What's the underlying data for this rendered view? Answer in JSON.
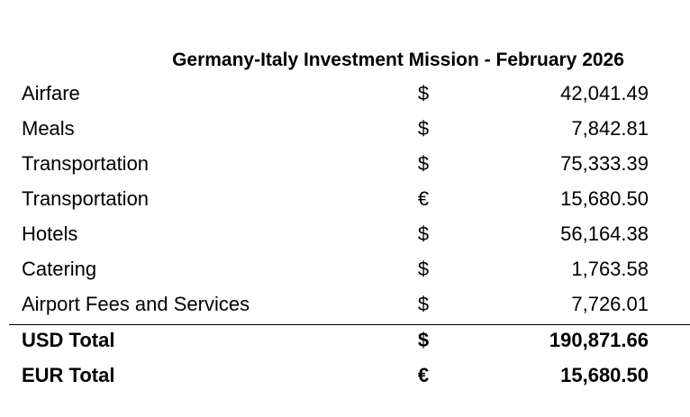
{
  "title": "Germany-Italy Investment Mission - February 2026",
  "table": {
    "rows": [
      [
        "Airfare",
        "$",
        "42,041.49"
      ],
      [
        "Meals",
        "$",
        "7,842.81"
      ],
      [
        "Transportation",
        "$",
        "75,333.39"
      ],
      [
        "Transportation",
        "€",
        "15,680.50"
      ],
      [
        "Hotels",
        "$",
        "56,164.38"
      ],
      [
        "Catering",
        "$",
        "1,763.58"
      ],
      [
        "Airport Fees and Services",
        "$",
        "7,726.01"
      ]
    ],
    "totals": [
      [
        "USD Total",
        "$",
        "190,871.66"
      ],
      [
        "EUR Total",
        "€",
        "15,680.50"
      ]
    ]
  }
}
